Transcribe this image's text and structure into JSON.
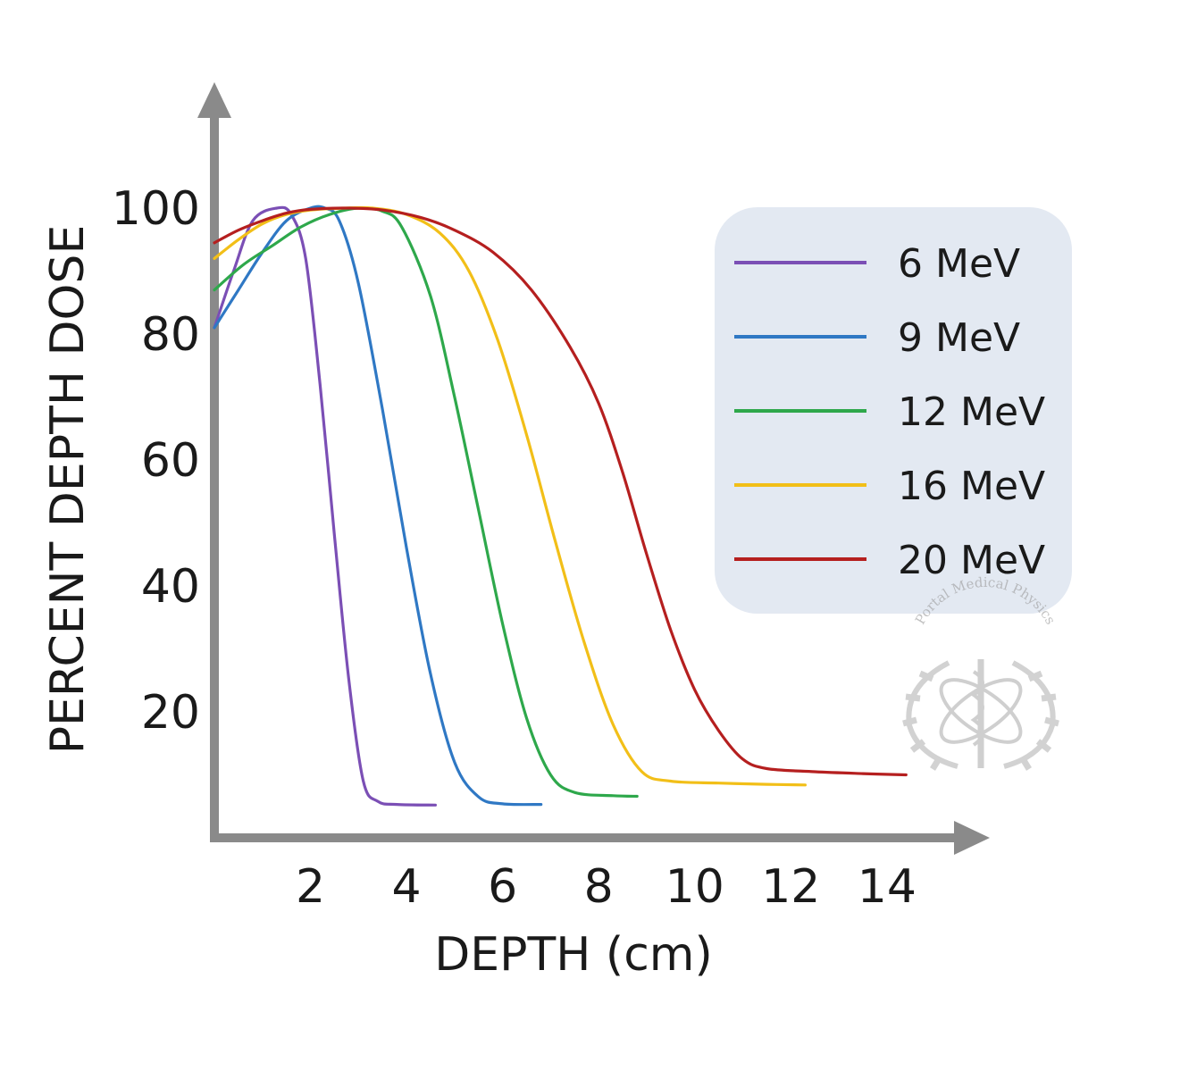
{
  "chart_data": {
    "type": "line",
    "title": "",
    "xlabel": "DEPTH (cm)",
    "ylabel": "PERCENT DEPTH DOSE",
    "xlim": [
      0,
      15.9
    ],
    "ylim": [
      0,
      120
    ],
    "x_ticks": [
      2,
      4,
      6,
      8,
      10,
      12,
      14
    ],
    "y_ticks": [
      20,
      40,
      60,
      80,
      100
    ],
    "grid": false,
    "legend_position": "top-right",
    "series": [
      {
        "name": "6 MeV",
        "color": "#7b4fb5",
        "points": [
          [
            0,
            81
          ],
          [
            0.4,
            90
          ],
          [
            0.8,
            98
          ],
          [
            1.3,
            100
          ],
          [
            1.6,
            99
          ],
          [
            1.9,
            92
          ],
          [
            2.2,
            72
          ],
          [
            2.5,
            48
          ],
          [
            2.8,
            25
          ],
          [
            3.1,
            9
          ],
          [
            3.4,
            5.8
          ],
          [
            3.8,
            5.3
          ],
          [
            4.6,
            5.2
          ]
        ]
      },
      {
        "name": "9 MeV",
        "color": "#2f78c4",
        "points": [
          [
            0,
            81
          ],
          [
            0.5,
            87
          ],
          [
            1.0,
            93
          ],
          [
            1.5,
            98
          ],
          [
            2.0,
            100
          ],
          [
            2.3,
            100
          ],
          [
            2.6,
            98
          ],
          [
            3.0,
            88
          ],
          [
            3.5,
            68
          ],
          [
            4.0,
            46
          ],
          [
            4.5,
            26
          ],
          [
            5.0,
            12
          ],
          [
            5.5,
            6.5
          ],
          [
            6.0,
            5.4
          ],
          [
            6.8,
            5.3
          ]
        ]
      },
      {
        "name": "12 MeV",
        "color": "#2ea84b",
        "points": [
          [
            0,
            87
          ],
          [
            0.6,
            91
          ],
          [
            1.2,
            94
          ],
          [
            1.8,
            97
          ],
          [
            2.4,
            99
          ],
          [
            3.0,
            100
          ],
          [
            3.5,
            99.5
          ],
          [
            3.9,
            97
          ],
          [
            4.5,
            86
          ],
          [
            5.0,
            70
          ],
          [
            5.5,
            52
          ],
          [
            6.0,
            34
          ],
          [
            6.5,
            19
          ],
          [
            7.0,
            10
          ],
          [
            7.5,
            7.2
          ],
          [
            8.3,
            6.7
          ],
          [
            8.8,
            6.6
          ]
        ]
      },
      {
        "name": "16 MeV",
        "color": "#f2bf18",
        "points": [
          [
            0,
            92
          ],
          [
            0.5,
            95
          ],
          [
            1.0,
            97.5
          ],
          [
            1.5,
            99
          ],
          [
            2.0,
            99.7
          ],
          [
            2.7,
            100
          ],
          [
            3.3,
            100
          ],
          [
            4.0,
            99
          ],
          [
            4.7,
            96
          ],
          [
            5.3,
            90
          ],
          [
            5.9,
            79
          ],
          [
            6.5,
            64
          ],
          [
            7.1,
            47
          ],
          [
            7.7,
            31
          ],
          [
            8.3,
            18
          ],
          [
            8.9,
            10.5
          ],
          [
            9.5,
            9
          ],
          [
            10.5,
            8.7
          ],
          [
            11.5,
            8.5
          ],
          [
            12.3,
            8.4
          ]
        ]
      },
      {
        "name": "20 MeV",
        "color": "#b51f1f",
        "points": [
          [
            0,
            94.5
          ],
          [
            0.5,
            96.5
          ],
          [
            1.0,
            98
          ],
          [
            1.5,
            99.2
          ],
          [
            2.0,
            99.8
          ],
          [
            2.8,
            100
          ],
          [
            3.5,
            99.7
          ],
          [
            4.3,
            98.5
          ],
          [
            5.0,
            96.5
          ],
          [
            5.8,
            93
          ],
          [
            6.6,
            87
          ],
          [
            7.4,
            78
          ],
          [
            8.0,
            69
          ],
          [
            8.5,
            58
          ],
          [
            9.0,
            45
          ],
          [
            9.5,
            33
          ],
          [
            10.0,
            23.5
          ],
          [
            10.5,
            17
          ],
          [
            11.0,
            12.5
          ],
          [
            11.5,
            11
          ],
          [
            12.5,
            10.5
          ],
          [
            13.5,
            10.2
          ],
          [
            14.4,
            10
          ]
        ]
      }
    ]
  },
  "watermark": {
    "text": "Portal Medical Physics"
  }
}
